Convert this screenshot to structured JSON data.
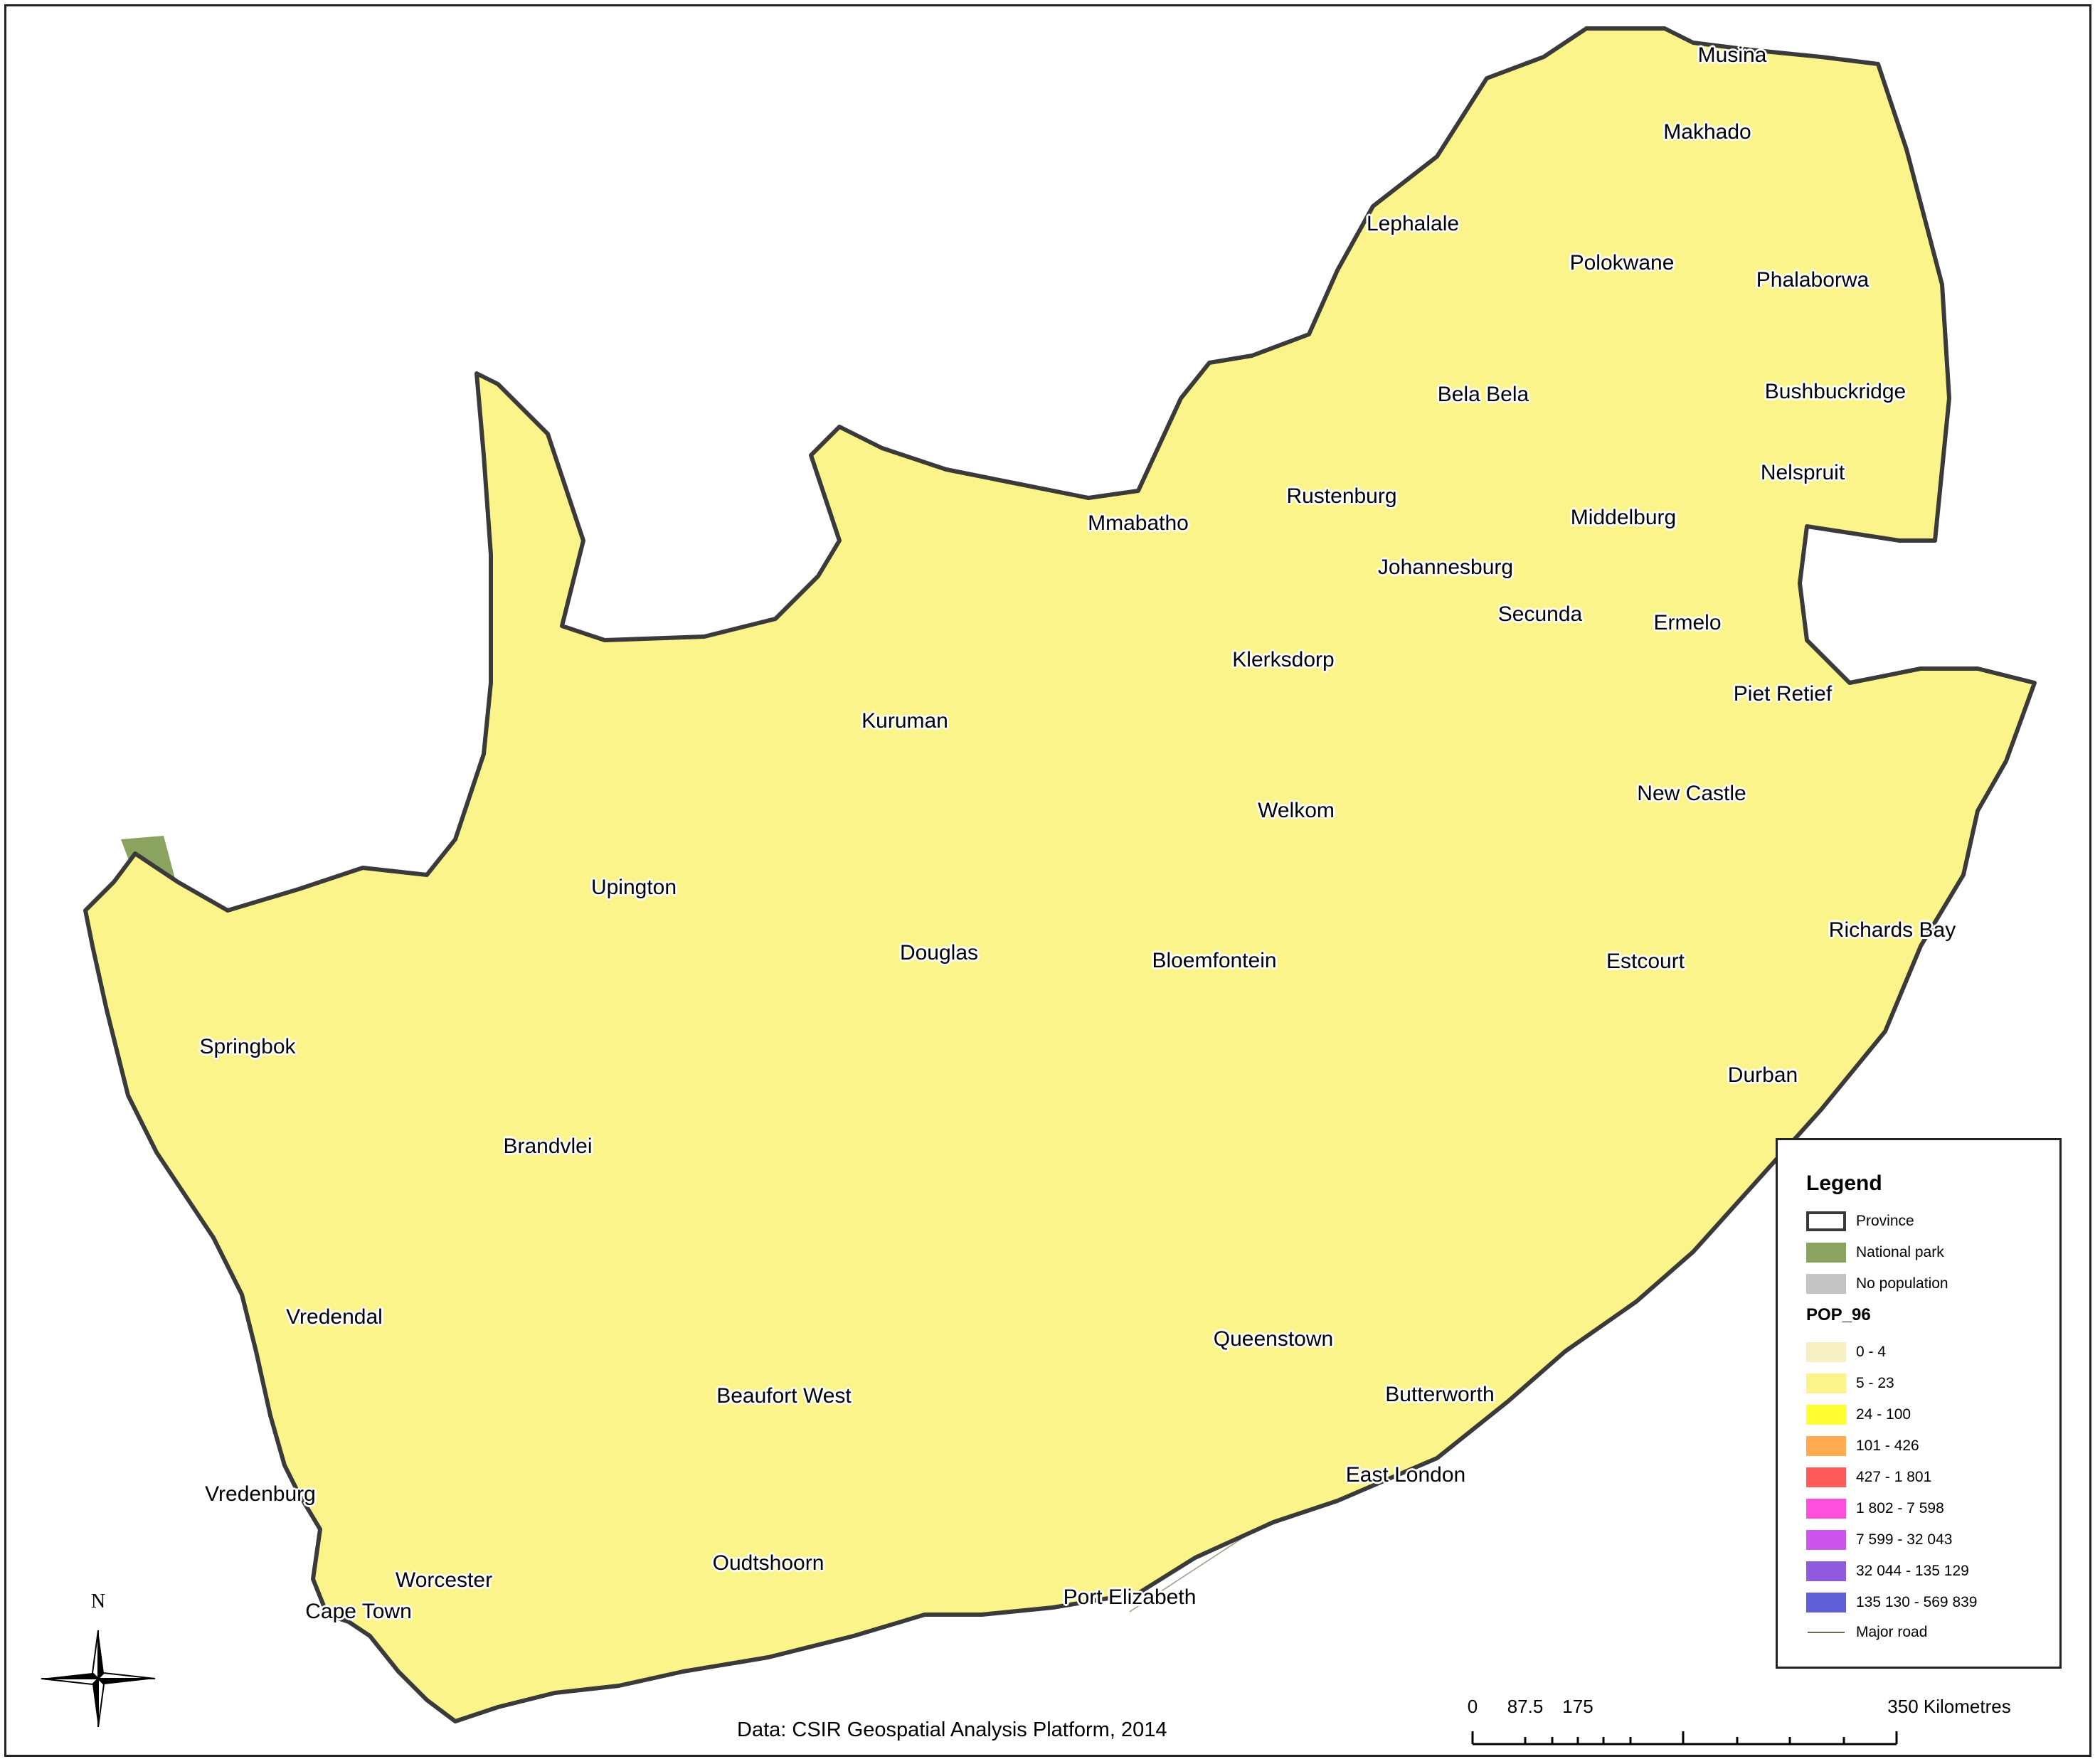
{
  "colors": {
    "province_border": "#3a3a3a",
    "national_park": "#8aa45f",
    "no_population": "#c4c4c4",
    "road": "#6b6b4d",
    "classes": [
      "#f6f0c2",
      "#fbf48a",
      "#ffff33",
      "#ffab52",
      "#ff5a5a",
      "#ff4fdd",
      "#cc55ee",
      "#8f5ae0",
      "#5f5fd8"
    ]
  },
  "labels": {
    "source": "Data: CSIR Geospatial Analysis Platform, 2014",
    "north": "N"
  },
  "places": [
    {
      "name": "Musina"
    },
    {
      "name": "Makhado"
    },
    {
      "name": "Lephalale"
    },
    {
      "name": "Polokwane"
    },
    {
      "name": "Phalaborwa"
    },
    {
      "name": "Bela Bela"
    },
    {
      "name": "Bushbuckridge"
    },
    {
      "name": "Nelspruit"
    },
    {
      "name": "Mmabatho"
    },
    {
      "name": "Rustenburg"
    },
    {
      "name": "Middelburg"
    },
    {
      "name": "Johannesburg"
    },
    {
      "name": "Secunda"
    },
    {
      "name": "Ermelo"
    },
    {
      "name": "Klerksdorp"
    },
    {
      "name": "Piet Retief"
    },
    {
      "name": "Kuruman"
    },
    {
      "name": "New Castle"
    },
    {
      "name": "Welkom"
    },
    {
      "name": "Upington"
    },
    {
      "name": "Douglas"
    },
    {
      "name": "Bloemfontein"
    },
    {
      "name": "Richards Bay"
    },
    {
      "name": "Estcourt"
    },
    {
      "name": "Springbok"
    },
    {
      "name": "Durban"
    },
    {
      "name": "Brandvlei"
    },
    {
      "name": "Vredendal"
    },
    {
      "name": "Queenstown"
    },
    {
      "name": "Beaufort West"
    },
    {
      "name": "Butterworth"
    },
    {
      "name": "East London"
    },
    {
      "name": "Vredenburg"
    },
    {
      "name": "Oudtshoorn"
    },
    {
      "name": "Worcester"
    },
    {
      "name": "Port Elizabeth"
    },
    {
      "name": "Cape Town"
    }
  ],
  "legend": {
    "title": "Legend",
    "items": [
      {
        "label": "Province",
        "kind": "outline",
        "color": "#3a3a3a"
      },
      {
        "label": "National park",
        "kind": "fill",
        "color": "#8aa45f"
      },
      {
        "label": "No population",
        "kind": "fill",
        "color": "#c4c4c4"
      }
    ],
    "field_name": "POP_96",
    "classes": [
      {
        "label": "0 - 4",
        "color": "#f6f0c2"
      },
      {
        "label": "5 - 23",
        "color": "#fbf48a"
      },
      {
        "label": "24 - 100",
        "color": "#ffff33"
      },
      {
        "label": "101 - 426",
        "color": "#ffab52"
      },
      {
        "label": "427 - 1 801",
        "color": "#ff5a5a"
      },
      {
        "label": "1 802 - 7 598",
        "color": "#ff4fdd"
      },
      {
        "label": "7 599 - 32 043",
        "color": "#cc55ee"
      },
      {
        "label": "32 044 - 135 129",
        "color": "#8f5ae0"
      },
      {
        "label": "135 130 - 569 839",
        "color": "#5f5fd8"
      }
    ],
    "road_label": "Major road"
  },
  "scale_bar": {
    "ticks": [
      "0",
      "87.5",
      "175",
      "350 Kilometres"
    ]
  }
}
